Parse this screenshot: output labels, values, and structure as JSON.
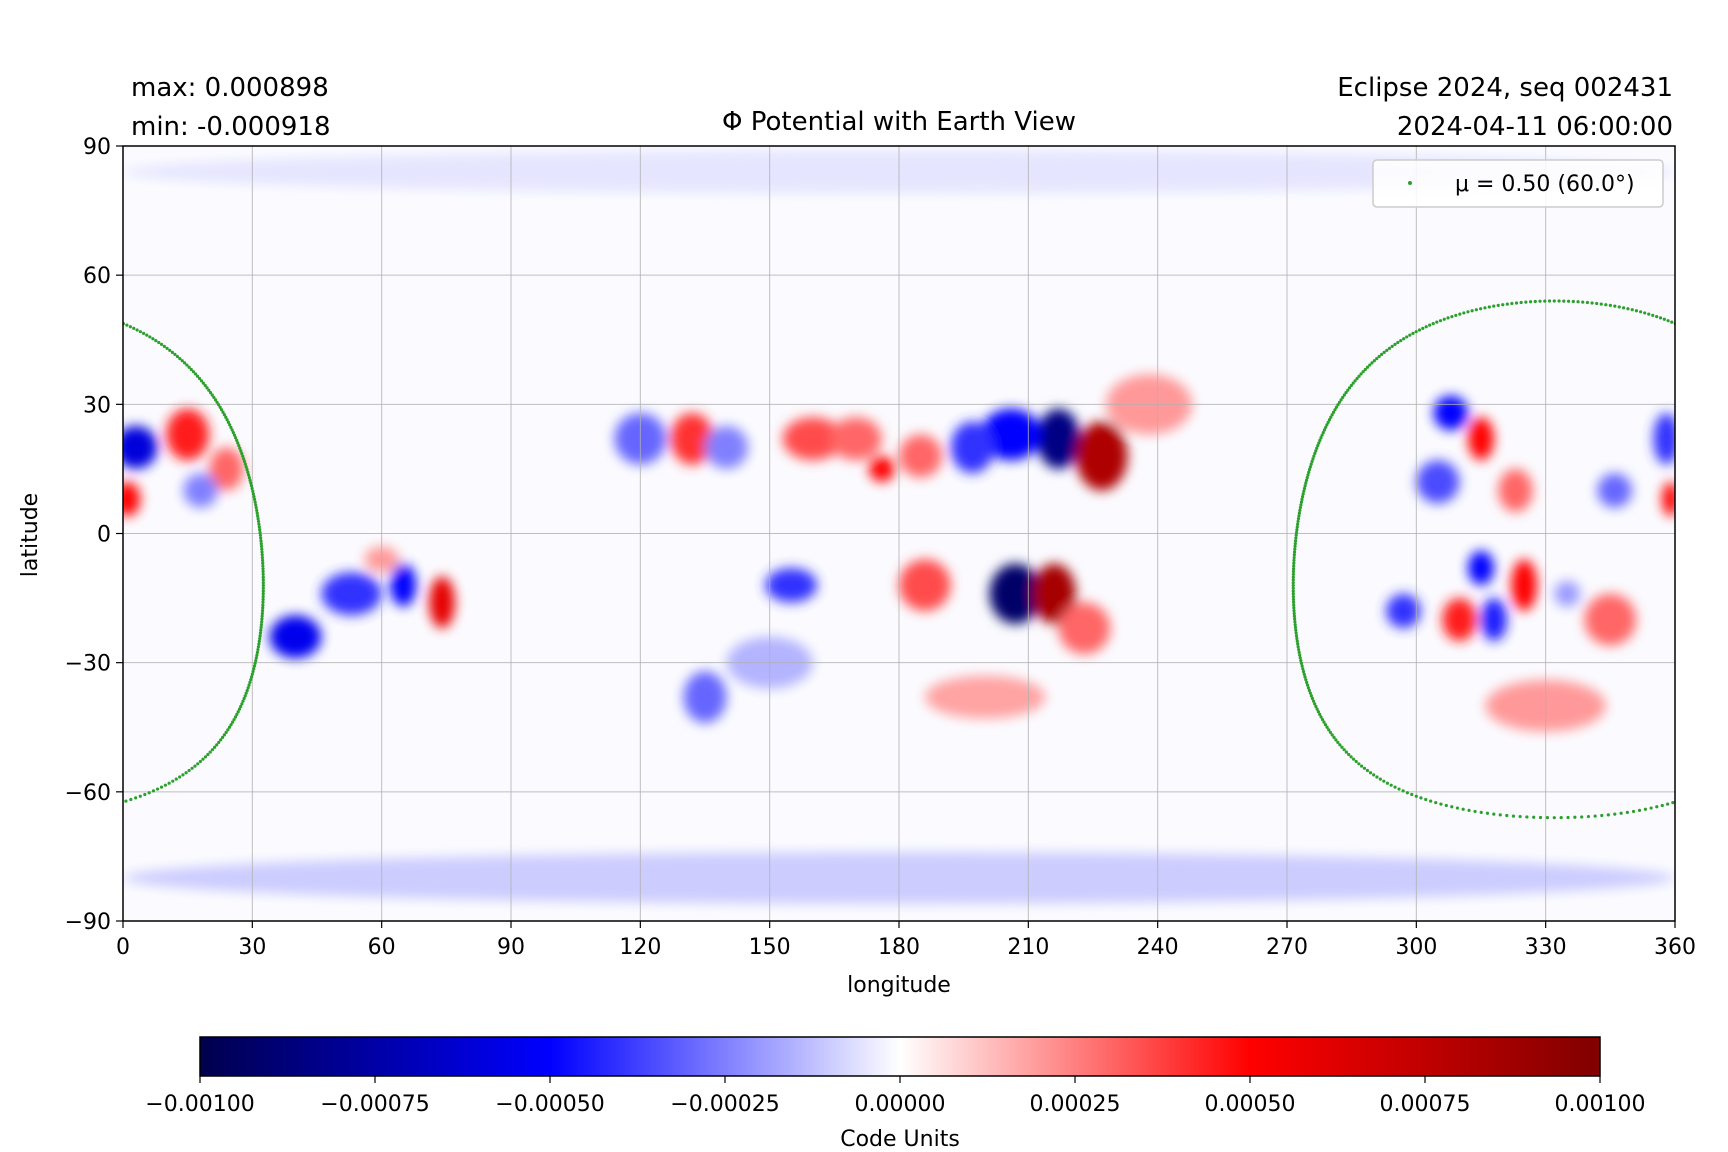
{
  "header": {
    "max_text": "max:  0.000898",
    "min_text": "min:  -0.000918",
    "title": "Φ Potential with Earth View",
    "run_label": "Eclipse 2024, seq 002431",
    "timestamp": "2024-04-11 06:00:00"
  },
  "chart_data": [
    {
      "type": "heatmap",
      "title": "Φ Potential with Earth View",
      "xlabel": "longitude",
      "ylabel": "latitude",
      "xlim": [
        0,
        360
      ],
      "ylim": [
        -90,
        90
      ],
      "x_ticks": [
        0,
        30,
        60,
        90,
        120,
        150,
        180,
        210,
        240,
        270,
        300,
        330,
        360
      ],
      "y_ticks": [
        -90,
        -60,
        -30,
        0,
        30,
        60,
        90
      ],
      "x_tick_labels": [
        "0",
        "30",
        "60",
        "90",
        "120",
        "150",
        "180",
        "210",
        "240",
        "270",
        "300",
        "330",
        "360"
      ],
      "y_tick_labels": [
        "−90",
        "−60",
        "−30",
        "0",
        "30",
        "60",
        "90"
      ],
      "grid": true,
      "colormap": "seismic",
      "vmin": -0.001,
      "vmax": 0.001,
      "data_max": 0.000898,
      "data_min": -0.000918,
      "features": [
        {
          "lon": 207,
          "lat": -14,
          "value": -0.00092,
          "wlon": 6,
          "wlat": 7
        },
        {
          "lon": 216,
          "lat": -14,
          "value": 0.00085,
          "wlon": 5,
          "wlat": 7
        },
        {
          "lon": 217,
          "lat": 22,
          "value": -0.00085,
          "wlon": 5,
          "wlat": 7
        },
        {
          "lon": 227,
          "lat": 18,
          "value": 0.00082,
          "wlon": 6,
          "wlat": 8
        },
        {
          "lon": 206,
          "lat": 23,
          "value": -0.0005,
          "wlon": 7,
          "wlat": 6
        },
        {
          "lon": 197,
          "lat": 20,
          "value": -0.0004,
          "wlon": 5,
          "wlat": 6
        },
        {
          "lon": 186,
          "lat": -12,
          "value": 0.00035,
          "wlon": 6,
          "wlat": 6
        },
        {
          "lon": 223,
          "lat": -22,
          "value": 0.0003,
          "wlon": 6,
          "wlat": 6
        },
        {
          "lon": 238,
          "lat": 30,
          "value": 0.0002,
          "wlon": 10,
          "wlat": 7
        },
        {
          "lon": 3,
          "lat": 20,
          "value": -0.0006,
          "wlon": 5,
          "wlat": 5
        },
        {
          "lon": 1,
          "lat": 8,
          "value": 0.0005,
          "wlon": 3,
          "wlat": 4
        },
        {
          "lon": 15,
          "lat": 23,
          "value": 0.00045,
          "wlon": 5,
          "wlat": 6
        },
        {
          "lon": 24,
          "lat": 15,
          "value": 0.0003,
          "wlon": 4,
          "wlat": 5
        },
        {
          "lon": 18,
          "lat": 10,
          "value": -0.00025,
          "wlon": 4,
          "wlat": 4
        },
        {
          "lon": 40,
          "lat": -24,
          "value": -0.00055,
          "wlon": 6,
          "wlat": 5
        },
        {
          "lon": 53,
          "lat": -14,
          "value": -0.0004,
          "wlon": 7,
          "wlat": 5
        },
        {
          "lon": 65,
          "lat": -12,
          "value": -0.0005,
          "wlon": 3,
          "wlat": 5
        },
        {
          "lon": 74,
          "lat": -16,
          "value": 0.0006,
          "wlon": 3,
          "wlat": 6
        },
        {
          "lon": 60,
          "lat": -6,
          "value": 0.0002,
          "wlon": 4,
          "wlat": 3
        },
        {
          "lon": 120,
          "lat": 22,
          "value": -0.0003,
          "wlon": 6,
          "wlat": 6
        },
        {
          "lon": 132,
          "lat": 22,
          "value": 0.0004,
          "wlon": 5,
          "wlat": 6
        },
        {
          "lon": 140,
          "lat": 20,
          "value": -0.00025,
          "wlon": 5,
          "wlat": 5
        },
        {
          "lon": 160,
          "lat": 22,
          "value": 0.00035,
          "wlon": 7,
          "wlat": 5
        },
        {
          "lon": 176,
          "lat": 15,
          "value": 0.0005,
          "wlon": 3,
          "wlat": 3
        },
        {
          "lon": 170,
          "lat": 22,
          "value": 0.0003,
          "wlon": 6,
          "wlat": 5
        },
        {
          "lon": 185,
          "lat": 18,
          "value": 0.0003,
          "wlon": 5,
          "wlat": 5
        },
        {
          "lon": 155,
          "lat": -12,
          "value": -0.0004,
          "wlon": 6,
          "wlat": 4
        },
        {
          "lon": 135,
          "lat": -38,
          "value": -0.0003,
          "wlon": 5,
          "wlat": 6
        },
        {
          "lon": 150,
          "lat": -30,
          "value": -0.00015,
          "wlon": 10,
          "wlat": 6
        },
        {
          "lon": 200,
          "lat": -38,
          "value": 0.00018,
          "wlon": 14,
          "wlat": 5
        },
        {
          "lon": 308,
          "lat": 28,
          "value": -0.0005,
          "wlon": 4,
          "wlat": 4
        },
        {
          "lon": 315,
          "lat": 22,
          "value": 0.0005,
          "wlon": 3,
          "wlat": 5
        },
        {
          "lon": 305,
          "lat": 12,
          "value": -0.00035,
          "wlon": 5,
          "wlat": 5
        },
        {
          "lon": 323,
          "lat": 10,
          "value": 0.0003,
          "wlon": 4,
          "wlat": 5
        },
        {
          "lon": 358,
          "lat": 22,
          "value": -0.0004,
          "wlon": 3,
          "wlat": 6
        },
        {
          "lon": 359,
          "lat": 8,
          "value": 0.0005,
          "wlon": 2,
          "wlat": 4
        },
        {
          "lon": 346,
          "lat": 10,
          "value": -0.0003,
          "wlon": 4,
          "wlat": 4
        },
        {
          "lon": 315,
          "lat": -8,
          "value": -0.0005,
          "wlon": 3,
          "wlat": 4
        },
        {
          "lon": 310,
          "lat": -20,
          "value": 0.00045,
          "wlon": 4,
          "wlat": 5
        },
        {
          "lon": 318,
          "lat": -20,
          "value": -0.00045,
          "wlon": 3,
          "wlat": 5
        },
        {
          "lon": 325,
          "lat": -12,
          "value": 0.0005,
          "wlon": 3,
          "wlat": 6
        },
        {
          "lon": 297,
          "lat": -18,
          "value": -0.0004,
          "wlon": 4,
          "wlat": 4
        },
        {
          "lon": 345,
          "lat": -20,
          "value": 0.0003,
          "wlon": 6,
          "wlat": 6
        },
        {
          "lon": 335,
          "lat": -14,
          "value": -0.0002,
          "wlon": 3,
          "wlat": 3
        },
        {
          "lon": 330,
          "lat": -40,
          "value": 0.0002,
          "wlon": 14,
          "wlat": 6
        },
        {
          "lon": 180,
          "lat": -80,
          "value": -0.0001,
          "wlon": 180,
          "wlat": 6
        },
        {
          "lon": 180,
          "lat": 84,
          "value": -5e-05,
          "wlon": 180,
          "wlat": 5
        }
      ],
      "overlay": {
        "series_label": "μ = 0.50 (60.0°)",
        "color": "#2ca02c",
        "center_lon": 332,
        "center_lat": -6,
        "radius_deg": 60,
        "wraps": true
      },
      "legend_position": "top-right"
    },
    {
      "type": "colorbar",
      "label": "Code Units",
      "vmin": -0.001,
      "vmax": 0.001,
      "ticks": [
        -0.001,
        -0.00075,
        -0.0005,
        -0.00025,
        0,
        0.00025,
        0.0005,
        0.00075,
        0.001
      ],
      "tick_labels": [
        "−0.00100",
        "−0.00075",
        "−0.00050",
        "−0.00025",
        "0.00000",
        "0.00025",
        "0.00050",
        "0.00075",
        "0.00100"
      ],
      "orientation": "horizontal"
    }
  ]
}
